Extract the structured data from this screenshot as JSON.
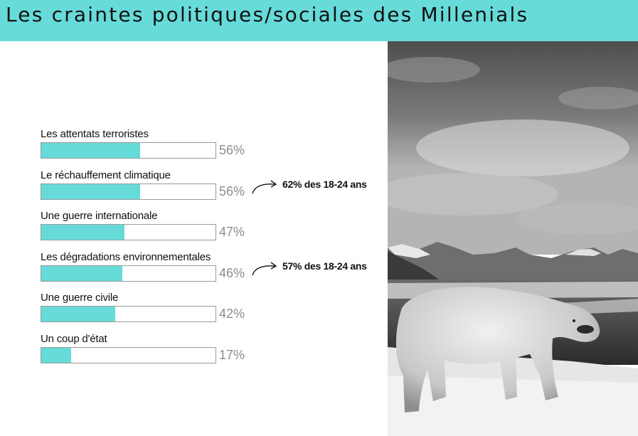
{
  "header": {
    "title": "Les craintes politiques/sociales des Millenials"
  },
  "colors": {
    "accent": "#66dbd9",
    "bar_fill": "#66dbd9",
    "bar_border": "#9a9a9a",
    "percent_text": "#8c8c8c"
  },
  "photo": {
    "icon": "polar-bear-photo"
  },
  "chart_data": {
    "type": "bar",
    "orientation": "horizontal",
    "categories": [
      "Les attentats terroristes",
      "Le réchauffement climatique",
      "Une guerre internationale",
      "Les dégradations environnementales",
      "Une guerre civile",
      "Un coup d'état"
    ],
    "values": [
      56,
      56,
      47,
      46,
      42,
      17
    ],
    "value_labels": [
      "56%",
      "56%",
      "47%",
      "46%",
      "42%",
      "17%"
    ],
    "xlim": [
      0,
      100
    ],
    "annotations": [
      {
        "category_index": 1,
        "text": "62% des 18-24 ans"
      },
      {
        "category_index": 3,
        "text": "57% des 18-24 ans"
      }
    ],
    "grid": false
  }
}
